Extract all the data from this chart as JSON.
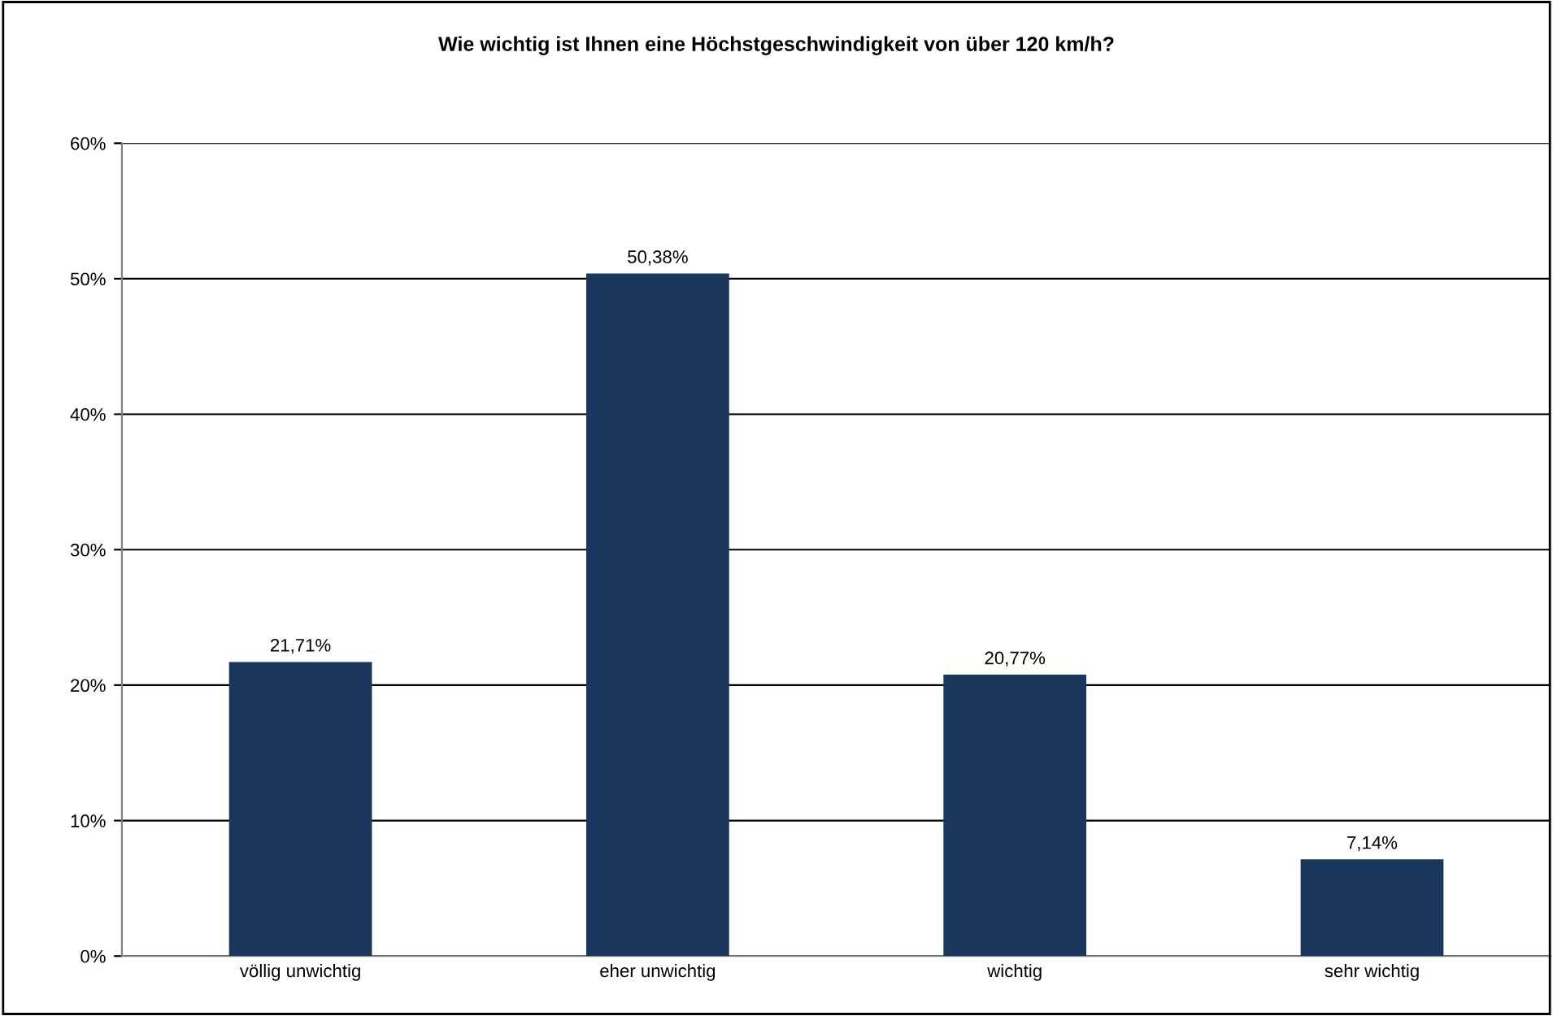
{
  "chart_data": {
    "type": "bar",
    "title": "Wie wichtig ist Ihnen eine Höchstgeschwindigkeit von über 120 km/h?",
    "categories": [
      "völlig unwichtig",
      "eher unwichtig",
      "wichtig",
      "sehr wichtig"
    ],
    "values": [
      21.71,
      50.38,
      20.77,
      7.14
    ],
    "value_labels": [
      "21,71%",
      "50,38%",
      "20,77%",
      "7,14%"
    ],
    "color": "#1a375e",
    "ylim": [
      0,
      60
    ],
    "yticks": [
      {
        "value": 0,
        "label": "0%"
      },
      {
        "value": 10,
        "label": "10%"
      },
      {
        "value": 20,
        "label": "20%"
      },
      {
        "value": 30,
        "label": "30%"
      },
      {
        "value": 40,
        "label": "40%"
      },
      {
        "value": 50,
        "label": "50%"
      },
      {
        "value": 60,
        "label": "60%"
      }
    ],
    "grid": "y"
  }
}
